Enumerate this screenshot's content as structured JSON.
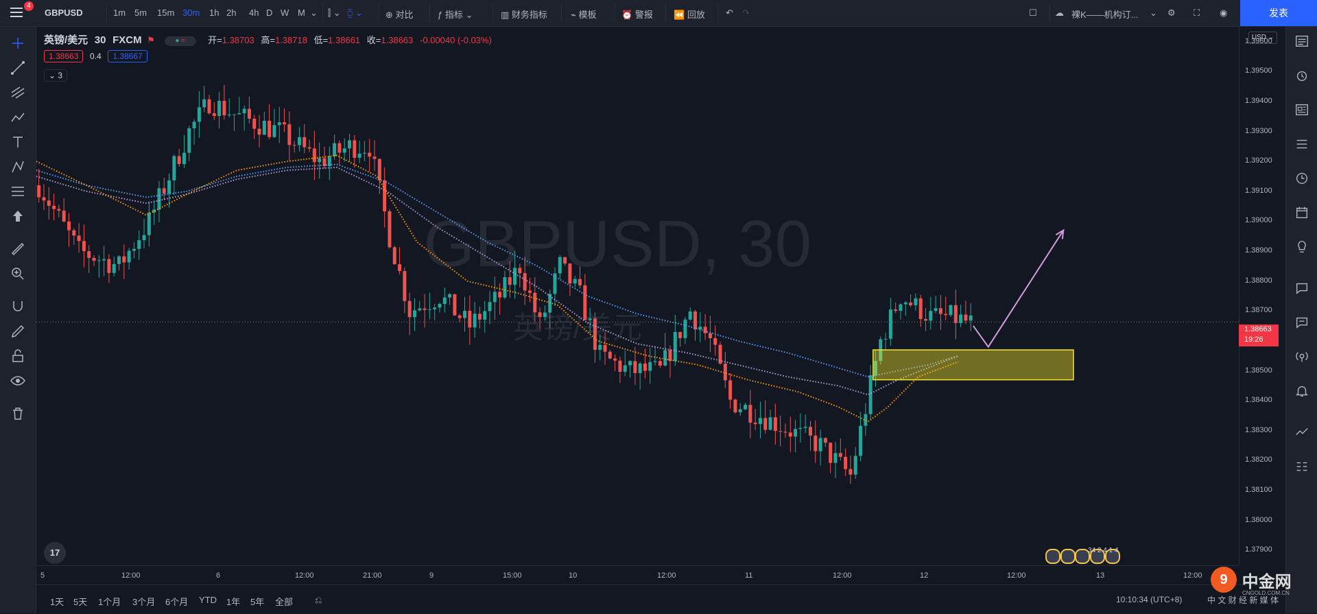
{
  "topbar": {
    "notification_count": "4",
    "symbol": "GBPUSD",
    "intervals": [
      "1m",
      "5m",
      "15m",
      "30m",
      "1h",
      "2h",
      "4h",
      "D",
      "W",
      "M"
    ],
    "active_interval": "30m",
    "compare_label": "对比",
    "indicators_label": "指标",
    "financials_label": "财务指标",
    "templates_label": "模板",
    "alert_label": "警报",
    "replay_label": "回放",
    "layout_name": "裸K——机构订...",
    "publish_label": "发表"
  },
  "legend": {
    "name": "英镑/美元",
    "interval": "30",
    "source": "FXCM",
    "open_label": "开=",
    "open": "1.38703",
    "high_label": "高=",
    "high": "1.38718",
    "low_label": "低=",
    "low": "1.38661",
    "close_label": "收=",
    "close": "1.38663",
    "change": "-0.00040 (-0.03%)",
    "bid": "1.38663",
    "spread": "0.4",
    "ask": "1.38667",
    "indicator_count": "3"
  },
  "price_axis": {
    "currency": "USD",
    "current_price": "1.38663",
    "countdown": "19:26"
  },
  "time_ticks": [
    "5",
    "12:00",
    "6",
    "12:00",
    "21:00",
    "9",
    "15:00",
    "10",
    "12:00",
    "11",
    "12:00",
    "12",
    "12:00",
    "13",
    "12:00"
  ],
  "ranges": [
    "1天",
    "5天",
    "1个月",
    "3个月",
    "6个月",
    "YTD",
    "1年",
    "5年",
    "全部"
  ],
  "clock": "10:10:34 (UTC+8)",
  "watermark": {
    "symbol": "GBPUSD, 30",
    "name": "英镑/美元"
  },
  "tv_logo_text": "17",
  "events_count": "34 2 4 1 4",
  "brand": {
    "name": "中金网",
    "domain": "CNGOLD.COM.CN",
    "tagline": "中 文 财 经 新 媒 体"
  },
  "colors": {
    "up": "#26a69a",
    "down": "#ef5350",
    "ma_blue": "#5b9cf6",
    "ma_purple": "#b39ddb",
    "ma_orange": "#ff9800",
    "zone": "#f5e52a",
    "arrow": "#d39be0"
  },
  "chart_data": {
    "type": "candlestick",
    "ylim": [
      1.3785,
      1.3965
    ],
    "yticks": [
      1.396,
      1.395,
      1.394,
      1.393,
      1.392,
      1.391,
      1.39,
      1.389,
      1.388,
      1.387,
      1.386,
      1.385,
      1.384,
      1.383,
      1.382,
      1.381,
      1.38,
      1.379
    ],
    "ytick_labels": [
      "1.39600",
      "1.39500",
      "1.39400",
      "1.39300",
      "1.39200",
      "1.39100",
      "1.39000",
      "1.38900",
      "1.38800",
      "1.38700",
      "1.38600",
      "1.38500",
      "1.38400",
      "1.38300",
      "1.38200",
      "1.38100",
      "1.38000",
      "1.37900"
    ],
    "x_range": [
      0,
      240
    ],
    "price_path": [
      [
        0,
        1.3912
      ],
      [
        8,
        1.389
      ],
      [
        16,
        1.3885
      ],
      [
        22,
        1.39
      ],
      [
        30,
        1.393
      ],
      [
        34,
        1.394
      ],
      [
        40,
        1.3935
      ],
      [
        48,
        1.393
      ],
      [
        56,
        1.392
      ],
      [
        62,
        1.3925
      ],
      [
        66,
        1.3925
      ],
      [
        70,
        1.3895
      ],
      [
        74,
        1.387
      ],
      [
        80,
        1.3875
      ],
      [
        86,
        1.3865
      ],
      [
        92,
        1.3875
      ],
      [
        96,
        1.3885
      ],
      [
        100,
        1.3865
      ],
      [
        104,
        1.3885
      ],
      [
        108,
        1.3875
      ],
      [
        112,
        1.3855
      ],
      [
        118,
        1.385
      ],
      [
        124,
        1.385
      ],
      [
        130,
        1.387
      ],
      [
        134,
        1.386
      ],
      [
        138,
        1.384
      ],
      [
        144,
        1.3835
      ],
      [
        150,
        1.383
      ],
      [
        156,
        1.3825
      ],
      [
        162,
        1.3815
      ],
      [
        164,
        1.383
      ],
      [
        168,
        1.386
      ],
      [
        172,
        1.3875
      ],
      [
        178,
        1.3868
      ],
      [
        182,
        1.3868
      ],
      [
        186,
        1.3866
      ]
    ],
    "ma_fast": [
      [
        0,
        1.392
      ],
      [
        10,
        1.3912
      ],
      [
        22,
        1.3902
      ],
      [
        30,
        1.3909
      ],
      [
        40,
        1.3917
      ],
      [
        50,
        1.392
      ],
      [
        60,
        1.3922
      ],
      [
        68,
        1.3915
      ],
      [
        76,
        1.3893
      ],
      [
        86,
        1.388
      ],
      [
        96,
        1.3876
      ],
      [
        104,
        1.3872
      ],
      [
        112,
        1.386
      ],
      [
        122,
        1.3855
      ],
      [
        132,
        1.3852
      ],
      [
        142,
        1.3847
      ],
      [
        152,
        1.3843
      ],
      [
        160,
        1.3838
      ],
      [
        166,
        1.3833
      ],
      [
        170,
        1.3838
      ],
      [
        176,
        1.3848
      ],
      [
        184,
        1.3853
      ]
    ],
    "ma_mid": [
      [
        0,
        1.3915
      ],
      [
        10,
        1.391
      ],
      [
        22,
        1.3906
      ],
      [
        30,
        1.3909
      ],
      [
        40,
        1.3914
      ],
      [
        50,
        1.3917
      ],
      [
        60,
        1.3918
      ],
      [
        70,
        1.391
      ],
      [
        80,
        1.3898
      ],
      [
        90,
        1.3888
      ],
      [
        100,
        1.3878
      ],
      [
        110,
        1.3866
      ],
      [
        120,
        1.3859
      ],
      [
        130,
        1.3856
      ],
      [
        140,
        1.3852
      ],
      [
        150,
        1.3848
      ],
      [
        160,
        1.3845
      ],
      [
        166,
        1.3842
      ],
      [
        172,
        1.3847
      ],
      [
        178,
        1.3851
      ],
      [
        184,
        1.3855
      ]
    ],
    "ma_slow": [
      [
        0,
        1.3917
      ],
      [
        10,
        1.3912
      ],
      [
        22,
        1.3908
      ],
      [
        30,
        1.391
      ],
      [
        40,
        1.3915
      ],
      [
        50,
        1.3918
      ],
      [
        60,
        1.3919
      ],
      [
        70,
        1.3913
      ],
      [
        80,
        1.3903
      ],
      [
        90,
        1.3893
      ],
      [
        100,
        1.3885
      ],
      [
        110,
        1.3875
      ],
      [
        120,
        1.3869
      ],
      [
        130,
        1.3865
      ],
      [
        140,
        1.386
      ],
      [
        150,
        1.3856
      ],
      [
        160,
        1.3851
      ],
      [
        166,
        1.3848
      ],
      [
        172,
        1.385
      ],
      [
        178,
        1.3852
      ],
      [
        184,
        1.3855
      ]
    ],
    "current_price_line": 1.38663,
    "zone": {
      "x0": 167,
      "x1": 207,
      "y_top": 1.3857,
      "y_bottom": 1.3847
    },
    "projection": [
      [
        187,
        1.3865
      ],
      [
        190,
        1.3858
      ],
      [
        205,
        1.3897
      ]
    ]
  }
}
